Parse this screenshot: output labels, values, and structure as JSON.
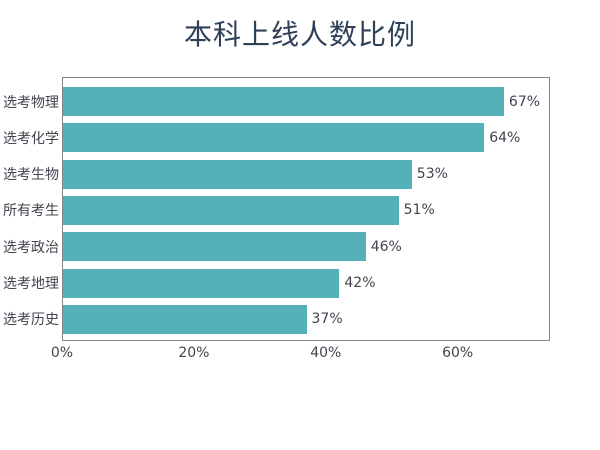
{
  "colors": {
    "bar": "#54b1ba",
    "title": "#2e4159",
    "text": "#42444f",
    "border": "#858585"
  },
  "chart_data": {
    "type": "bar",
    "orientation": "horizontal",
    "title": "本科上线人数比例",
    "categories": [
      "选考物理",
      "选考化学",
      "选考生物",
      "所有考生",
      "选考政治",
      "选考地理",
      "选考历史"
    ],
    "values": [
      67,
      64,
      53,
      51,
      46,
      42,
      37
    ],
    "value_labels": [
      "67%",
      "64%",
      "53%",
      "51%",
      "46%",
      "42%",
      "37%"
    ],
    "x_ticks": [
      {
        "label": "0%",
        "value": 0
      },
      {
        "label": "20%",
        "value": 20
      },
      {
        "label": "40%",
        "value": 40
      },
      {
        "label": "60%",
        "value": 60
      }
    ],
    "xlim": [
      0,
      74
    ],
    "xlabel": "",
    "ylabel": "",
    "grid": false,
    "legend": false,
    "plot_background": "#ffffff"
  }
}
